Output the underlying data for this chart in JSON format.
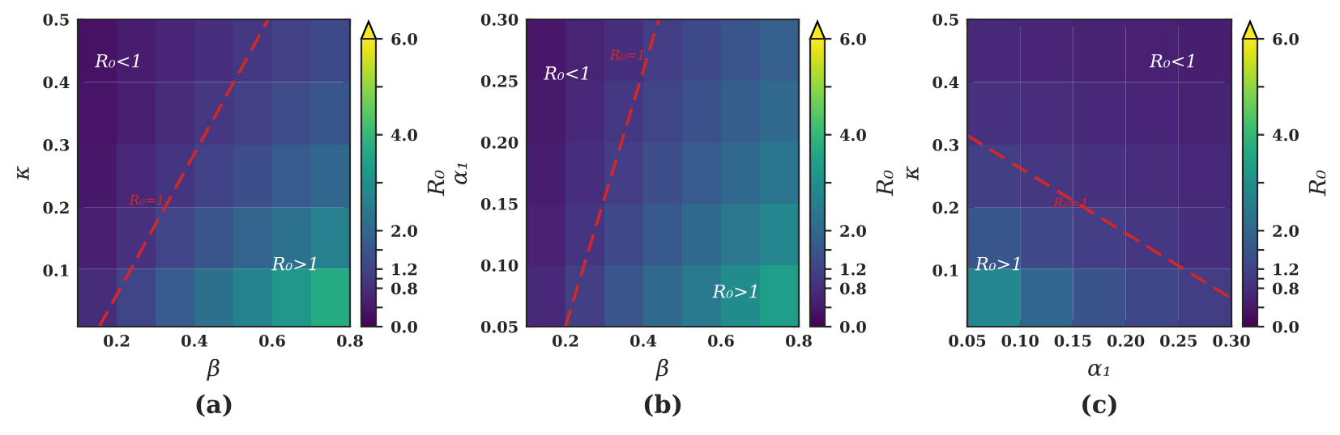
{
  "chart_data": [
    {
      "type": "heatmap",
      "xlabel": "β",
      "ylabel": "κ",
      "clabel": "R₀",
      "x": [
        0.15,
        0.25,
        0.35,
        0.45,
        0.55,
        0.65,
        0.75
      ],
      "y": [
        0.45,
        0.35,
        0.25,
        0.15,
        0.055
      ],
      "cells": [
        [
          0.27,
          0.45,
          0.63,
          0.8,
          0.98,
          1.16,
          1.34
        ],
        [
          0.32,
          0.53,
          0.74,
          0.96,
          1.17,
          1.38,
          1.6
        ],
        [
          0.39,
          0.66,
          0.92,
          1.18,
          1.45,
          1.71,
          1.97
        ],
        [
          0.52,
          0.86,
          1.21,
          1.55,
          1.9,
          2.24,
          2.59
        ],
        [
          0.73,
          1.22,
          1.71,
          2.2,
          2.69,
          3.18,
          3.67
        ]
      ],
      "clim": [
        0,
        6
      ],
      "cticks": [
        {
          "value": 0,
          "label": "0.0"
        },
        {
          "value": 0.4,
          "label": null
        },
        {
          "value": 0.8,
          "label": "0.8"
        },
        {
          "value": 1.0,
          "label": null
        },
        {
          "value": 1.2,
          "label": "1.2"
        },
        {
          "value": 1.6,
          "label": null
        },
        {
          "value": 2,
          "label": "2.0"
        },
        {
          "value": 3,
          "label": null
        },
        {
          "value": 4,
          "label": "4.0"
        },
        {
          "value": 5,
          "label": null
        },
        {
          "value": 6,
          "label": "6.0"
        }
      ],
      "series": [
        {
          "type": "line",
          "color": "#d62728",
          "line_style": "dashed",
          "x": [
            0.155,
            0.59
          ],
          "values": [
            0.01,
            0.5
          ]
        }
      ],
      "xlim": [
        0.1,
        0.8
      ],
      "ylim": [
        0.01,
        0.5
      ],
      "xticks": [
        0.2,
        0.4,
        0.6,
        0.8
      ],
      "yticks": [
        0.1,
        0.2,
        0.3,
        0.4,
        0.5
      ],
      "annotations": [
        "R₀<1",
        "R₀>1",
        {
          "text": "R₀=1",
          "x": 0.324,
          "y": 0.2
        },
        "(a)"
      ]
    },
    {
      "type": "heatmap",
      "xlabel": "β",
      "ylabel": "α₁",
      "clabel": "R₀",
      "x": [
        0.15,
        0.25,
        0.35,
        0.45,
        0.55,
        0.65,
        0.75
      ],
      "y": [
        0.275,
        0.225,
        0.175,
        0.125,
        0.075
      ],
      "cells": [
        [
          0.36,
          0.6,
          0.84,
          1.08,
          1.32,
          1.56,
          1.8
        ],
        [
          0.41,
          0.68,
          0.95,
          1.22,
          1.49,
          1.77,
          2.04
        ],
        [
          0.47,
          0.78,
          1.09,
          1.41,
          1.72,
          2.03,
          2.34
        ],
        [
          0.55,
          0.92,
          1.29,
          1.65,
          2.02,
          2.39,
          2.76
        ],
        [
          0.67,
          1.12,
          1.56,
          2.01,
          2.46,
          2.9,
          3.35
        ]
      ],
      "clim": [
        0,
        6
      ],
      "cticks": [
        {
          "value": 0,
          "label": "0.0"
        },
        {
          "value": 0.4,
          "label": null
        },
        {
          "value": 0.8,
          "label": "0.8"
        },
        {
          "value": 1.0,
          "label": null
        },
        {
          "value": 1.2,
          "label": "1.2"
        },
        {
          "value": 1.6,
          "label": null
        },
        {
          "value": 2,
          "label": "2.0"
        },
        {
          "value": 3,
          "label": null
        },
        {
          "value": 4,
          "label": "4.0"
        },
        {
          "value": 5,
          "label": null
        },
        {
          "value": 6,
          "label": "6.0"
        }
      ],
      "series": [
        {
          "type": "line",
          "color": "#d62728",
          "line_style": "dashed",
          "x": [
            0.2,
            0.44
          ],
          "values": [
            0.05,
            0.3
          ]
        }
      ],
      "xlim": [
        0.1,
        0.8
      ],
      "ylim": [
        0.05,
        0.3
      ],
      "xticks": [
        0.2,
        0.4,
        0.6,
        0.8
      ],
      "yticks": [
        0.05,
        {
          "value": 0.1,
          "label": "0.10"
        },
        0.15,
        {
          "value": 0.2,
          "label": "0.20"
        },
        0.25,
        {
          "value": 0.3,
          "label": "0.30"
        }
      ],
      "annotations": [
        "R₀<1",
        "R₀>1",
        {
          "text": "R₀=1",
          "x": 0.406,
          "y": 0.265
        },
        "(b)"
      ]
    },
    {
      "type": "heatmap",
      "xlabel": "α₁",
      "ylabel": "κ",
      "clabel": "R₀",
      "x": [
        0.075,
        0.125,
        0.175,
        0.225,
        0.275
      ],
      "y": [
        0.45,
        0.35,
        0.25,
        0.15,
        0.055
      ],
      "cells": [
        [
          0.69,
          0.63,
          0.58,
          0.54,
          0.5
        ],
        [
          0.86,
          0.76,
          0.69,
          0.63,
          0.58
        ],
        [
          1.12,
          0.96,
          0.85,
          0.76,
          0.68
        ],
        [
          1.61,
          1.31,
          1.1,
          0.95,
          0.84
        ],
        [
          2.75,
          1.98,
          1.54,
          1.27,
          1.07
        ]
      ],
      "clim": [
        0,
        6
      ],
      "cticks": [
        {
          "value": 0,
          "label": "0.0"
        },
        {
          "value": 0.4,
          "label": null
        },
        {
          "value": 0.8,
          "label": "0.8"
        },
        {
          "value": 1.0,
          "label": null
        },
        {
          "value": 1.2,
          "label": "1.2"
        },
        {
          "value": 1.6,
          "label": null
        },
        {
          "value": 2,
          "label": "2.0"
        },
        {
          "value": 3,
          "label": null
        },
        {
          "value": 4,
          "label": "4.0"
        },
        {
          "value": 5,
          "label": null
        },
        {
          "value": 6,
          "label": "6.0"
        }
      ],
      "series": [
        {
          "type": "line",
          "color": "#d62728",
          "line_style": "dashed",
          "x": [
            0.05,
            0.3
          ],
          "values": [
            0.315,
            0.055
          ]
        }
      ],
      "xlim": [
        0.05,
        0.3
      ],
      "ylim": [
        0.01,
        0.5
      ],
      "xticks": [
        0.05,
        {
          "value": 0.1,
          "label": "0.10"
        },
        0.15,
        {
          "value": 0.2,
          "label": "0.20"
        },
        0.25,
        {
          "value": 0.3,
          "label": "0.30"
        }
      ],
      "yticks": [
        0.1,
        0.2,
        0.3,
        0.4,
        0.5
      ],
      "annotations": [
        "R₀<1",
        "R₀>1",
        {
          "text": "R₀=1",
          "x": 0.165,
          "y": 0.195
        },
        "(c)"
      ]
    }
  ]
}
